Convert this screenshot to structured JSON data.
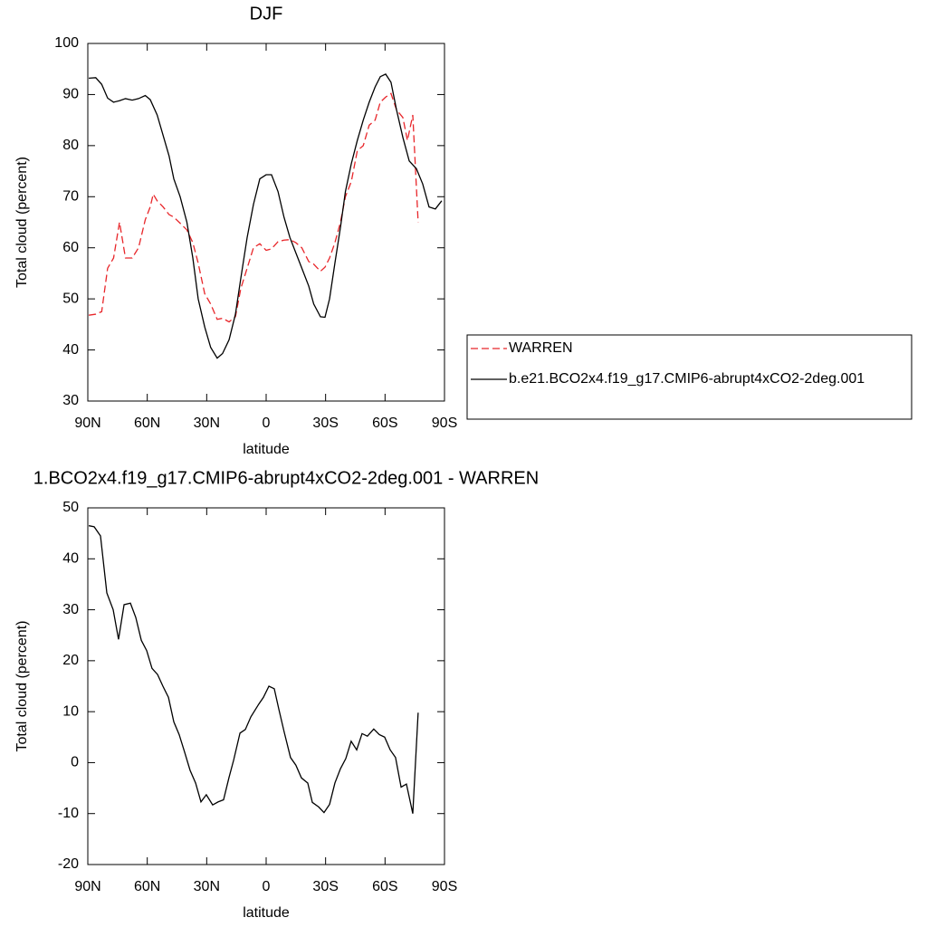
{
  "chart_data": [
    {
      "type": "line",
      "title": "DJF",
      "x_label": "latitude",
      "y_label": "Total cloud (percent)",
      "xlim": [
        90,
        -90
      ],
      "xticks": [
        {
          "value": 90,
          "label": "90N"
        },
        {
          "value": 60,
          "label": "60N"
        },
        {
          "value": 30,
          "label": "30N"
        },
        0,
        {
          "value": -30,
          "label": "30S"
        },
        {
          "value": -60,
          "label": "60S"
        },
        {
          "value": -90,
          "label": "90S"
        }
      ],
      "ylim": [
        30,
        100
      ],
      "yticks": [
        30,
        40,
        50,
        60,
        70,
        80,
        90,
        100
      ],
      "legend": "outside-right",
      "series": [
        {
          "name": "WARREN",
          "color": "#e8262a",
          "line_style": "dashed",
          "x": [
            89.5,
            86,
            83,
            80,
            77,
            74,
            71,
            67.6,
            64.4,
            61,
            58.5,
            57,
            55,
            52,
            49,
            46.6,
            43.4,
            40,
            37,
            34.3,
            31,
            28,
            24.7,
            22,
            18.7,
            15.5,
            12.8,
            9.6,
            6.4,
            3.2,
            0,
            -2.7,
            -6,
            -9,
            -12,
            -15,
            -18,
            -21.5,
            -24,
            -27.4,
            -29.7,
            -32,
            -34.7,
            -37.5,
            -40,
            -43,
            -46,
            -49,
            -52,
            -55,
            -57.6,
            -60.3,
            -63,
            -65.8,
            -69,
            -71.3,
            -74,
            -76.7
          ],
          "values": [
            46.8,
            47,
            47.5,
            56,
            58,
            65,
            58,
            58,
            60,
            65.5,
            68,
            70.5,
            69.2,
            68,
            66.5,
            66,
            64.8,
            63.5,
            61,
            57,
            51,
            49,
            46,
            46.2,
            45.5,
            46.5,
            52,
            56,
            60,
            60.8,
            59.5,
            59.8,
            61.2,
            61.5,
            61.6,
            61,
            60,
            57.3,
            56.8,
            55.4,
            56.2,
            58,
            61,
            65,
            70,
            73,
            79,
            80,
            84,
            85,
            88.5,
            89.5,
            90.2,
            87,
            85.5,
            81,
            86,
            65
          ]
        },
        {
          "name": "b.e21.BCO2x4.f19_g17.CMIP6-abrupt4xCO2-2deg.001",
          "color": "#000000",
          "line_style": "solid",
          "x": [
            89.5,
            86,
            83,
            80,
            77,
            74,
            71,
            67.6,
            64.4,
            61,
            58.5,
            55,
            52,
            49,
            46.6,
            43.4,
            40,
            37,
            34.3,
            31,
            28,
            24.7,
            22,
            18.7,
            15.5,
            12.8,
            9.6,
            6.4,
            3.2,
            0,
            -2.7,
            -6,
            -9,
            -12,
            -15,
            -18,
            -21.5,
            -24,
            -27.4,
            -29.7,
            -32,
            -34.7,
            -37.5,
            -40,
            -43,
            -46,
            -49,
            -52,
            -55,
            -57.6,
            -60.3,
            -63,
            -65.8,
            -69,
            -72.2,
            -75.8,
            -79,
            -82.2,
            -85.4,
            -88.6
          ],
          "values": [
            93.2,
            93.3,
            92,
            89.3,
            88.5,
            88.8,
            89.2,
            88.9,
            89.2,
            89.8,
            89,
            86,
            82,
            78,
            73.5,
            70,
            65,
            58,
            50,
            44.5,
            40.5,
            38.4,
            39.3,
            42,
            47,
            54,
            62,
            68.5,
            73.5,
            74.3,
            74.3,
            71,
            66,
            62,
            59,
            56,
            52.5,
            49,
            46.5,
            46.4,
            50,
            57,
            64,
            71,
            76.5,
            81,
            85,
            88.5,
            91.5,
            93.5,
            94,
            92.4,
            87,
            81.6,
            77,
            75.5,
            72.5,
            68,
            67.6,
            69.2
          ]
        }
      ]
    },
    {
      "type": "line",
      "title": "1.BCO2x4.f19_g17.CMIP6-abrupt4xCO2-2deg.001 - WARREN",
      "x_label": "latitude",
      "y_label": "Total cloud (percent)",
      "xlim": [
        90,
        -90
      ],
      "xticks": [
        {
          "value": 90,
          "label": "90N"
        },
        {
          "value": 60,
          "label": "60N"
        },
        {
          "value": 30,
          "label": "30N"
        },
        0,
        {
          "value": -30,
          "label": "30S"
        },
        {
          "value": -60,
          "label": "60S"
        },
        {
          "value": -90,
          "label": "90S"
        }
      ],
      "ylim": [
        -20,
        50
      ],
      "yticks": [
        -20,
        -10,
        0,
        10,
        20,
        30,
        40,
        50
      ],
      "series": [
        {
          "color": "#000000",
          "line_style": "solid",
          "x": [
            89.5,
            86.8,
            83.6,
            80.4,
            77.2,
            74.5,
            71.7,
            68.5,
            65.8,
            63,
            60.3,
            57.6,
            54.8,
            52.1,
            49.3,
            46.6,
            43.9,
            41.1,
            38.4,
            35.6,
            32.9,
            30.2,
            27,
            24.2,
            21.5,
            18.8,
            16.4,
            13.2,
            10.5,
            7.7,
            3.7,
            1.4,
            -1.4,
            -4.1,
            -6.4,
            -9.1,
            -12.3,
            -15,
            -17.8,
            -21,
            -23.3,
            -26.5,
            -29.2,
            -32,
            -34.7,
            -37.5,
            -40.2,
            -42.9,
            -45.7,
            -48.4,
            -51.1,
            -54.3,
            -57.1,
            -59.8,
            -62.6,
            -65.3,
            -68.1,
            -70.8,
            -74,
            -76.7
          ],
          "values": [
            46.5,
            46.3,
            44.5,
            33.3,
            30,
            24.2,
            31,
            31.3,
            28.5,
            24,
            22,
            18.5,
            17.3,
            15,
            12.8,
            8,
            5.5,
            2,
            -1.5,
            -4,
            -7.7,
            -6.3,
            -8.3,
            -7.7,
            -7.3,
            -3,
            0.5,
            5.8,
            6.5,
            9,
            11.5,
            12.8,
            15,
            14.5,
            10.5,
            6,
            1,
            -0.5,
            -3,
            -4,
            -7.8,
            -8.7,
            -9.8,
            -8.2,
            -4,
            -1.2,
            0.8,
            4.2,
            2.5,
            5.7,
            5.2,
            6.6,
            5.5,
            5,
            2.5,
            1,
            -4.8,
            -4.2,
            -10,
            9.8
          ]
        }
      ]
    }
  ]
}
